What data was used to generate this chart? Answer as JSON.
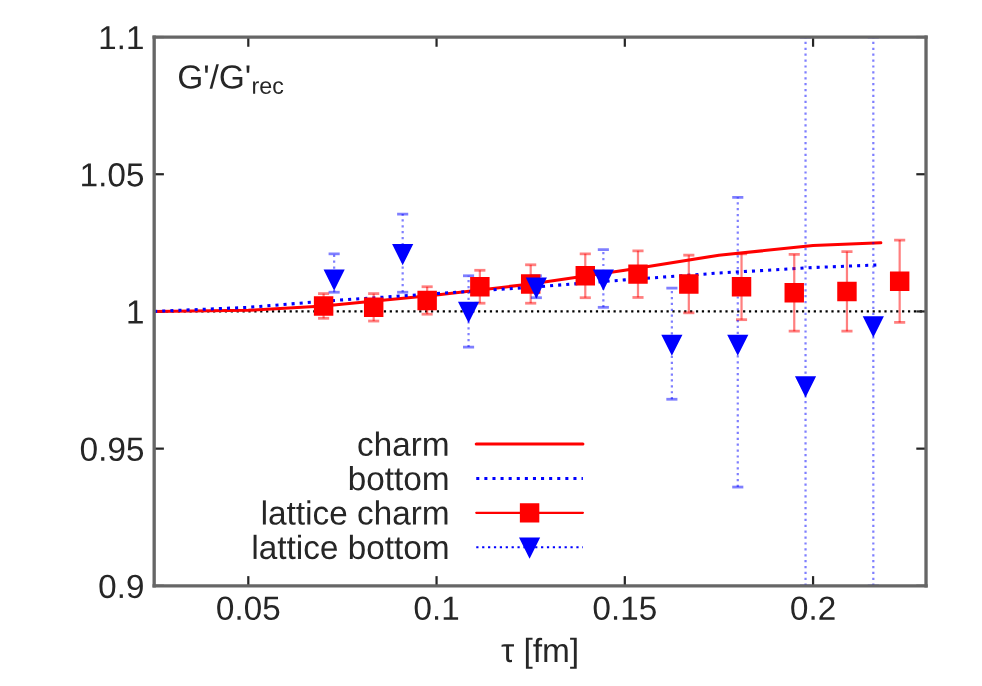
{
  "chart_data": {
    "type": "line",
    "xlabel": "τ [fm]",
    "annotations": [
      "G'/G'$_{rec}$"
    ],
    "xlim": [
      0.025,
      0.23
    ],
    "ylim": [
      0.9,
      1.1
    ],
    "xticks": [
      0.05,
      0.1,
      0.15,
      0.2
    ],
    "yticks": [
      0.9,
      0.95,
      1,
      1.05,
      1.1
    ],
    "grid": false,
    "legend": "bottom left",
    "ref_lines": [
      {
        "axis": "y",
        "value": 1,
        "color": "#000000",
        "line_style": "dotted"
      }
    ],
    "series": [
      {
        "name": "charm",
        "color": "#ff0000",
        "line_style": "solid",
        "marker": "none",
        "x": [
          0.025,
          0.05,
          0.07,
          0.1,
          0.125,
          0.15,
          0.175,
          0.2,
          0.218
        ],
        "values": [
          1.0,
          1.0004,
          1.002,
          1.006,
          1.01,
          1.015,
          1.0205,
          1.024,
          1.025
        ]
      },
      {
        "name": "bottom",
        "color": "#0000ff",
        "line_style": "dotted",
        "marker": "none",
        "x": [
          0.025,
          0.05,
          0.0728,
          0.1,
          0.125,
          0.15,
          0.175,
          0.2,
          0.218
        ],
        "values": [
          1.0,
          1.0015,
          1.004,
          1.0065,
          1.0088,
          1.0115,
          1.014,
          1.016,
          1.017
        ]
      },
      {
        "name": "lattice charm",
        "type": "scatter",
        "color": "#ff0000",
        "line_style": "solid",
        "marker": "square",
        "x": [
          0.07,
          0.0833,
          0.0975,
          0.1115,
          0.125,
          0.1395,
          0.1535,
          0.167,
          0.181,
          0.195,
          0.209,
          0.223
        ],
        "values": [
          1.002,
          1.0015,
          1.004,
          1.009,
          1.01,
          1.013,
          1.0136,
          1.01,
          1.009,
          1.0068,
          1.0073,
          1.011
        ],
        "errors": [
          0.0045,
          0.005,
          0.005,
          0.006,
          0.007,
          0.008,
          0.0085,
          0.0105,
          0.012,
          0.014,
          0.0145,
          0.015
        ]
      },
      {
        "name": "lattice bottom",
        "type": "scatter",
        "color": "#0000ff",
        "line_style": "dotted",
        "marker": "triangle",
        "x": [
          0.0728,
          0.091,
          0.1085,
          0.1265,
          0.1443,
          0.1625,
          0.18,
          0.198,
          0.216
        ],
        "values": [
          1.0117,
          1.021,
          1.0,
          1.0088,
          1.0117,
          0.988,
          0.988,
          0.9728,
          0.9947
        ],
        "errors": [
          [
            1.007,
            1.021
          ],
          [
            1.007,
            1.0355
          ],
          [
            0.987,
            1.013
          ],
          [
            1.005,
            1.013
          ],
          [
            1.0015,
            1.0225
          ],
          [
            0.968,
            1.0085
          ],
          [
            0.936,
            1.0416
          ],
          [
            0.9,
            1.1
          ],
          [
            0.9,
            1.1
          ]
        ]
      }
    ]
  }
}
